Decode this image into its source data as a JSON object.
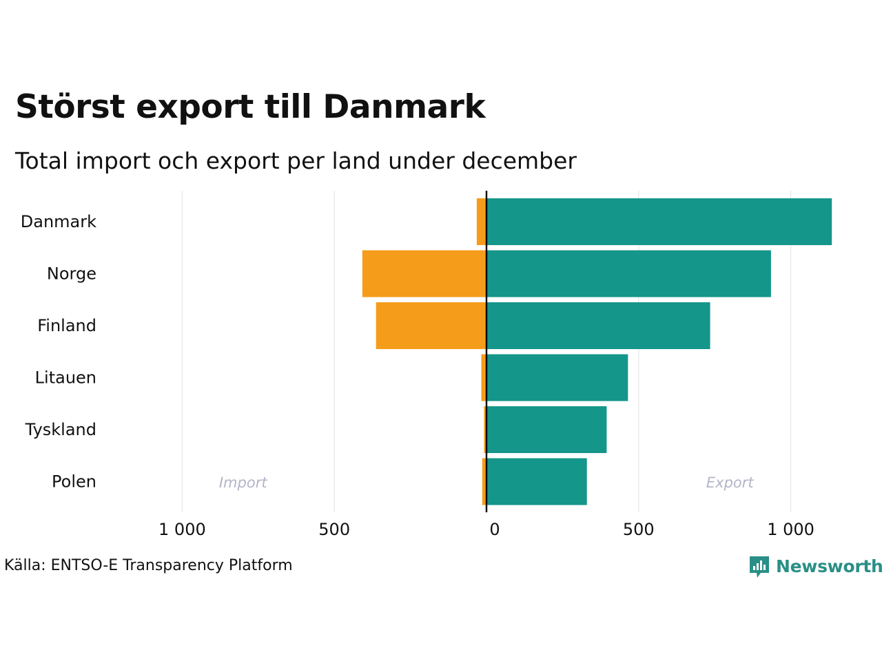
{
  "header": {
    "title": "Störst export till Danmark",
    "subtitle": "Total import och export per land under december"
  },
  "chart_data": {
    "type": "bar",
    "orientation": "horizontal-diverging",
    "categories": [
      "Danmark",
      "Norge",
      "Finland",
      "Litauen",
      "Tyskland",
      "Polen"
    ],
    "series": [
      {
        "name": "Import",
        "color": "#f59c1a",
        "values": [
          32,
          408,
          363,
          17,
          8,
          14
        ]
      },
      {
        "name": "Export",
        "color": "#14968a",
        "values": [
          1135,
          935,
          735,
          465,
          395,
          330
        ]
      }
    ],
    "x_ticks": [
      {
        "value": -1000,
        "label": "1 000"
      },
      {
        "value": -500,
        "label": "500"
      },
      {
        "value": 0,
        "label": "0"
      },
      {
        "value": 500,
        "label": "500"
      },
      {
        "value": 1000,
        "label": "1 000"
      }
    ],
    "xlim": [
      -1000,
      1000
    ],
    "grid": true,
    "side_labels": {
      "left": "Import",
      "right": "Export"
    }
  },
  "footer": {
    "source": "Källa: ENTSO-E Transparency Platform",
    "logo_text": "Newsworthy"
  },
  "colors": {
    "import": "#f59c1a",
    "export": "#14968a",
    "grid": "#e6e6e6",
    "side_label": "#b4b4c8",
    "logo": "#2a8f86"
  }
}
